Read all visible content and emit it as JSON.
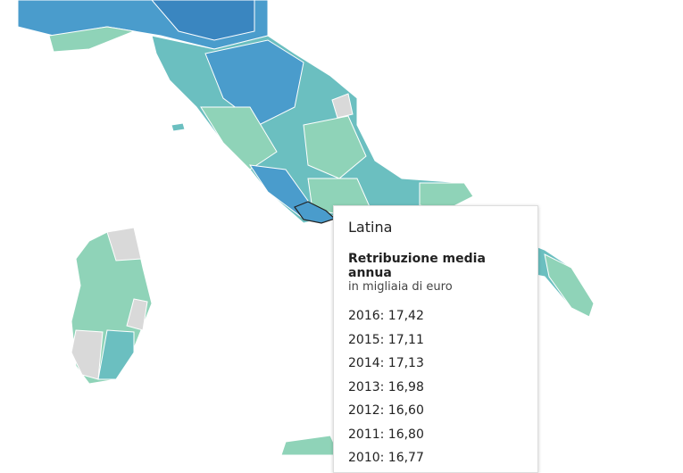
{
  "tooltip": {
    "title": "Latina",
    "metric": "Retribuzione media annua",
    "unit": "in migliaia di euro",
    "rows": [
      "2016: 17,42",
      "2015: 17,11",
      "2014: 17,13",
      "2013: 16,98",
      "2012: 16,60",
      "2011: 16,80",
      "2010: 16,77"
    ]
  }
}
